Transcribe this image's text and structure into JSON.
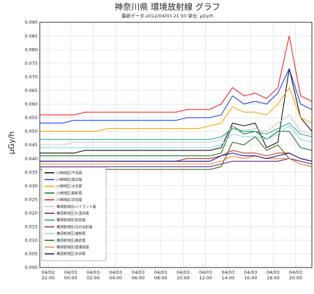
{
  "chart_data": {
    "type": "line",
    "title": "神奈川県 環境放射線 グラフ",
    "subtitle": "最新データ:2012/04/03 21:50 単位: μGy/h",
    "ylabel": "μGy/h",
    "xlabel": "",
    "ylim": [
      0.0,
      0.09
    ],
    "yticks": [
      "0.000",
      "0.005",
      "0.010",
      "0.015",
      "0.020",
      "0.025",
      "0.030",
      "0.035",
      "0.040",
      "0.045",
      "0.050",
      "0.055",
      "0.060",
      "0.065",
      "0.070",
      "0.075",
      "0.080",
      "0.085",
      "0.090"
    ],
    "xticks": [
      {
        "date": "04/02",
        "time": "22:00"
      },
      {
        "date": "04/03",
        "time": "00:00"
      },
      {
        "date": "04/03",
        "time": "02:00"
      },
      {
        "date": "04/03",
        "time": "04:00"
      },
      {
        "date": "04/03",
        "time": "06:00"
      },
      {
        "date": "04/03",
        "time": "08:00"
      },
      {
        "date": "04/03",
        "time": "10:00"
      },
      {
        "date": "04/03",
        "time": "12:00"
      },
      {
        "date": "04/03",
        "time": "14:00"
      },
      {
        "date": "04/03",
        "time": "16:00"
      },
      {
        "date": "04/03",
        "time": "18:00"
      },
      {
        "date": "04/03",
        "time": "20:00"
      }
    ],
    "x": [
      0,
      1,
      2,
      3,
      4,
      5,
      6,
      7,
      8,
      9,
      10,
      11,
      12,
      13,
      14,
      15,
      16,
      17,
      18,
      19,
      20,
      21,
      22,
      23,
      24
    ],
    "grid": true,
    "legend_position": "bottom-left",
    "series": [
      {
        "name": "川崎地区/千鳥局",
        "color": "#111111",
        "values": [
          0.042,
          0.042,
          0.042,
          0.042,
          0.043,
          0.043,
          0.043,
          0.043,
          0.043,
          0.043,
          0.043,
          0.043,
          0.043,
          0.043,
          0.043,
          0.043,
          0.044,
          0.053,
          0.052,
          0.053,
          0.044,
          0.046,
          0.073,
          0.055,
          0.05
        ]
      },
      {
        "name": "川崎地区/塩浜局",
        "color": "#1f3fff",
        "values": [
          0.053,
          0.053,
          0.053,
          0.054,
          0.054,
          0.054,
          0.054,
          0.054,
          0.054,
          0.054,
          0.054,
          0.054,
          0.054,
          0.055,
          0.055,
          0.055,
          0.056,
          0.063,
          0.06,
          0.061,
          0.06,
          0.064,
          0.073,
          0.06,
          0.058
        ]
      },
      {
        "name": "川崎地区/大島局",
        "color": "#ffa500",
        "values": [
          0.05,
          0.05,
          0.05,
          0.05,
          0.05,
          0.05,
          0.051,
          0.051,
          0.051,
          0.051,
          0.051,
          0.051,
          0.051,
          0.051,
          0.051,
          0.052,
          0.053,
          0.059,
          0.057,
          0.057,
          0.056,
          0.06,
          0.066,
          0.055,
          0.053
        ]
      },
      {
        "name": "川崎地区/殿町局",
        "color": "#1a7a1a",
        "values": [
          0.041,
          0.041,
          0.041,
          0.041,
          0.041,
          0.041,
          0.041,
          0.041,
          0.041,
          0.041,
          0.041,
          0.041,
          0.041,
          0.041,
          0.041,
          0.041,
          0.042,
          0.052,
          0.049,
          0.05,
          0.047,
          0.05,
          0.05,
          0.044,
          0.043
        ]
      },
      {
        "name": "川崎地区/浮島局",
        "color": "#ff1e1e",
        "values": [
          0.056,
          0.056,
          0.056,
          0.056,
          0.057,
          0.057,
          0.057,
          0.057,
          0.057,
          0.057,
          0.057,
          0.057,
          0.057,
          0.058,
          0.058,
          0.058,
          0.06,
          0.066,
          0.063,
          0.064,
          0.062,
          0.066,
          0.085,
          0.063,
          0.061
        ]
      },
      {
        "name": "横須賀地区/ハイランド局",
        "color": "#c8c8c8",
        "values": [
          0.045,
          0.045,
          0.045,
          0.046,
          0.046,
          0.046,
          0.046,
          0.046,
          0.046,
          0.046,
          0.046,
          0.046,
          0.046,
          0.046,
          0.046,
          0.046,
          0.047,
          0.052,
          0.05,
          0.051,
          0.05,
          0.053,
          0.056,
          0.05,
          0.049
        ]
      },
      {
        "name": "横須賀地区/久里浜局",
        "color": "#5a2a90",
        "values": [
          0.037,
          0.037,
          0.037,
          0.037,
          0.037,
          0.037,
          0.037,
          0.037,
          0.037,
          0.037,
          0.037,
          0.037,
          0.037,
          0.037,
          0.037,
          0.037,
          0.038,
          0.039,
          0.039,
          0.039,
          0.039,
          0.039,
          0.04,
          0.039,
          0.038
        ]
      },
      {
        "name": "横須賀地区/佐島局",
        "color": "#2aa890",
        "values": [
          0.047,
          0.047,
          0.047,
          0.047,
          0.047,
          0.047,
          0.047,
          0.047,
          0.047,
          0.047,
          0.047,
          0.047,
          0.047,
          0.047,
          0.047,
          0.047,
          0.048,
          0.051,
          0.05,
          0.05,
          0.049,
          0.051,
          0.053,
          0.049,
          0.048
        ]
      },
      {
        "name": "横須賀地区/日の出町局",
        "color": "#c03020",
        "values": [
          0.039,
          0.039,
          0.039,
          0.039,
          0.039,
          0.039,
          0.039,
          0.039,
          0.039,
          0.039,
          0.039,
          0.039,
          0.039,
          0.04,
          0.04,
          0.04,
          0.041,
          0.043,
          0.042,
          0.042,
          0.041,
          0.042,
          0.042,
          0.04,
          0.039
        ]
      },
      {
        "name": "横須賀地区/浦賀局",
        "color": "#8ad0ff",
        "values": [
          0.044,
          0.044,
          0.044,
          0.044,
          0.044,
          0.044,
          0.044,
          0.044,
          0.044,
          0.044,
          0.044,
          0.044,
          0.044,
          0.044,
          0.044,
          0.044,
          0.045,
          0.049,
          0.048,
          0.048,
          0.047,
          0.049,
          0.052,
          0.047,
          0.046
        ]
      },
      {
        "name": "横須賀地区/森倉局",
        "color": "#3a6a10",
        "values": [
          0.036,
          0.036,
          0.036,
          0.036,
          0.036,
          0.036,
          0.036,
          0.036,
          0.036,
          0.036,
          0.036,
          0.036,
          0.036,
          0.036,
          0.036,
          0.036,
          0.037,
          0.046,
          0.045,
          0.048,
          0.043,
          0.045,
          0.04,
          0.038,
          0.037
        ]
      },
      {
        "name": "横須賀地区/西浦見局",
        "color": "#ff8040",
        "values": [
          0.038,
          0.038,
          0.038,
          0.038,
          0.038,
          0.038,
          0.038,
          0.038,
          0.038,
          0.038,
          0.038,
          0.038,
          0.038,
          0.038,
          0.038,
          0.038,
          0.039,
          0.041,
          0.04,
          0.041,
          0.04,
          0.04,
          0.04,
          0.038,
          0.037
        ]
      },
      {
        "name": "横須賀地区/衣浜局",
        "color": "#101080",
        "values": [
          0.039,
          0.039,
          0.039,
          0.039,
          0.039,
          0.039,
          0.039,
          0.039,
          0.039,
          0.039,
          0.039,
          0.039,
          0.039,
          0.039,
          0.039,
          0.039,
          0.041,
          0.042,
          0.041,
          0.041,
          0.04,
          0.041,
          0.042,
          0.04,
          0.039
        ]
      }
    ]
  }
}
